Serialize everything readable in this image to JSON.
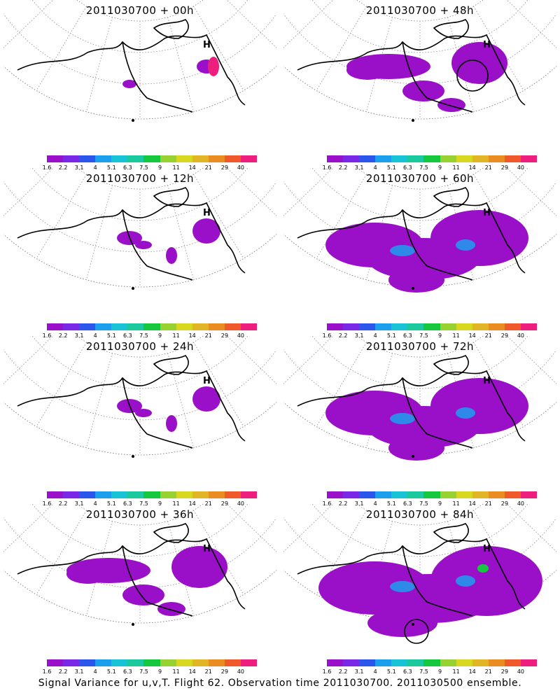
{
  "colorbar": {
    "colors": [
      "#9a10c8",
      "#7a28e8",
      "#2c55ee",
      "#1c9fee",
      "#18c3d6",
      "#1ac9a0",
      "#15c840",
      "#98d232",
      "#d8d820",
      "#e0b626",
      "#e98c22",
      "#ee5a2c",
      "#ee1f7c"
    ],
    "tick_labels": [
      "1.6",
      "2.2",
      "3.1",
      "4",
      "5.1",
      "6.3",
      "7.5",
      "9",
      "11",
      "14",
      "21",
      "29",
      "40"
    ]
  },
  "panels": [
    {
      "title": "2011030700 + 00h",
      "level": 0
    },
    {
      "title": "2011030700 + 48h",
      "level": 2
    },
    {
      "title": "2011030700 + 12h",
      "level": 1
    },
    {
      "title": "2011030700 + 60h",
      "level": 3
    },
    {
      "title": "2011030700 + 24h",
      "level": 1
    },
    {
      "title": "2011030700 + 72h",
      "level": 3
    },
    {
      "title": "2011030700 + 36h",
      "level": 2
    },
    {
      "title": "2011030700 + 84h",
      "level": 4
    }
  ],
  "footer": "Signal Variance for u,v,T. Flight 62. Observation time 2011030700. 2011030500 ensemble."
}
